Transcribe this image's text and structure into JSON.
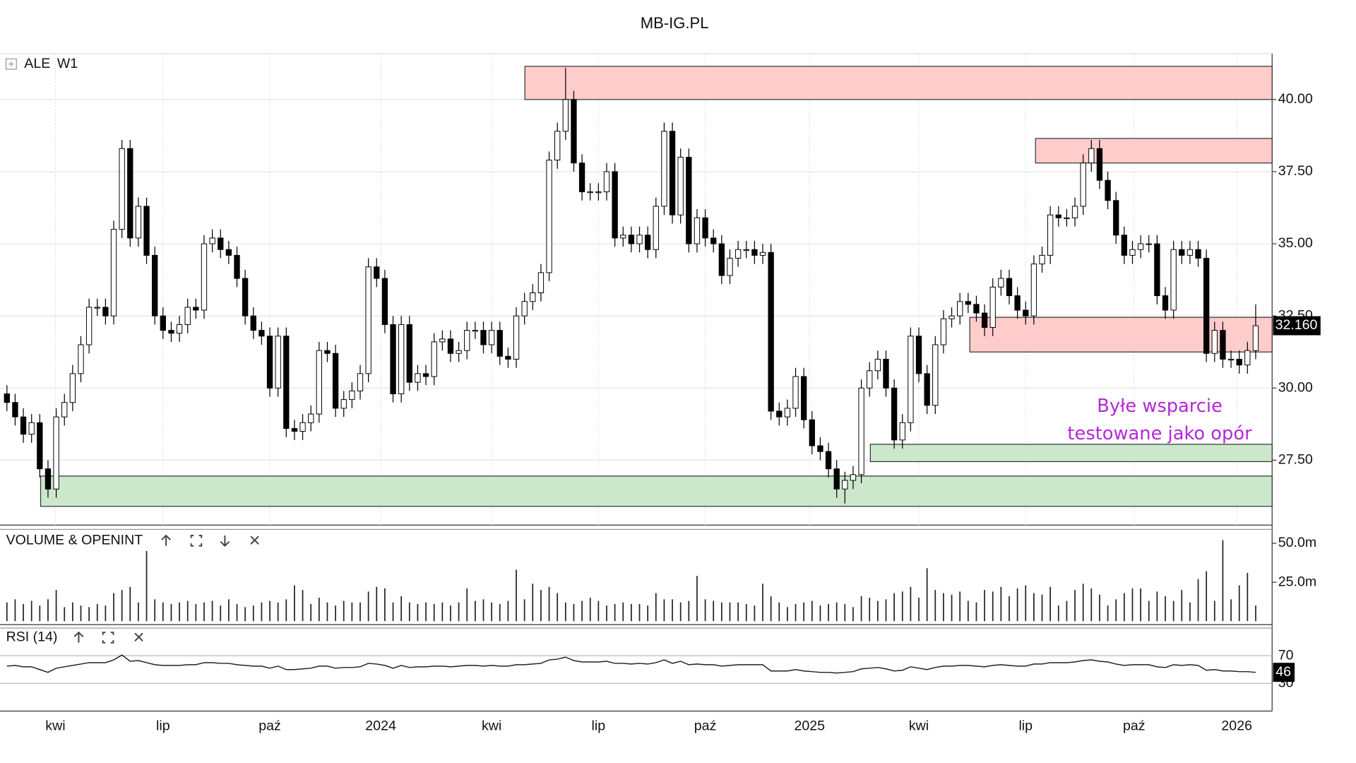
{
  "header": {
    "title": "MB-IG.PL"
  },
  "chart_data": {
    "type": "candlestick",
    "symbol": "ALE",
    "interval": "W1",
    "candles": {
      "open": [
        29.8,
        29.5,
        29.0,
        28.4,
        28.8,
        27.2,
        26.5,
        29.0,
        29.5,
        30.5,
        31.5,
        32.8,
        32.8,
        32.5,
        35.5,
        38.3,
        35.2,
        36.3,
        34.6,
        32.5,
        32.0,
        31.9,
        32.2,
        32.8,
        32.7,
        35.0,
        35.2,
        34.8,
        34.6,
        33.8,
        32.5,
        32.0,
        31.8,
        30.0,
        31.8,
        28.6,
        28.5,
        28.8,
        29.1,
        31.3,
        31.2,
        29.3,
        29.6,
        29.9,
        30.5,
        34.2,
        33.8,
        32.2,
        29.8,
        32.2,
        30.2,
        30.5,
        30.4,
        31.6,
        31.7,
        31.2,
        31.3,
        32.0,
        32.0,
        31.5,
        32.0,
        31.1,
        31.0,
        32.5,
        33.0,
        33.3,
        34.0,
        37.9,
        38.9,
        40.0,
        37.8,
        36.8,
        36.8,
        36.8,
        37.5,
        35.2,
        35.3,
        35.0,
        35.3,
        34.8,
        36.3,
        38.9,
        36.0,
        38.0,
        35.0,
        35.9,
        35.2,
        35.0,
        33.9,
        34.5,
        34.8,
        34.8,
        34.6,
        34.7,
        29.2,
        29.0,
        29.3,
        30.4,
        28.9,
        28.0,
        27.8,
        27.2,
        26.5,
        26.8,
        27.0,
        30.0,
        30.6,
        31.0,
        30.0,
        28.2,
        28.8,
        31.8,
        30.5,
        29.4,
        31.5,
        32.4,
        32.5,
        33.0,
        32.9,
        32.6,
        32.1,
        33.5,
        33.8,
        33.2,
        32.7,
        32.5,
        34.3,
        34.6,
        36.0,
        35.9,
        35.9,
        36.3,
        37.8,
        38.3,
        37.2,
        36.5,
        35.3,
        34.6,
        34.8,
        35.0,
        35.0,
        33.2,
        32.7,
        34.8,
        34.6,
        34.8,
        34.5,
        31.2,
        32.0,
        31.0,
        31.0,
        30.8,
        31.3
      ],
      "high": [
        30.1,
        29.8,
        29.3,
        29.1,
        29.1,
        27.5,
        29.3,
        29.8,
        30.8,
        31.8,
        33.1,
        33.1,
        33.1,
        35.8,
        38.6,
        38.6,
        36.6,
        36.6,
        34.9,
        32.8,
        32.3,
        32.5,
        33.1,
        33.1,
        35.3,
        35.5,
        35.5,
        35.1,
        34.9,
        34.1,
        32.8,
        32.3,
        32.1,
        32.1,
        32.1,
        28.9,
        29.1,
        29.4,
        31.6,
        31.6,
        31.5,
        29.9,
        30.2,
        30.8,
        34.5,
        34.5,
        34.1,
        32.5,
        32.5,
        32.5,
        30.8,
        30.8,
        31.9,
        32.0,
        32.0,
        31.6,
        32.3,
        32.3,
        32.3,
        32.3,
        32.3,
        31.4,
        32.8,
        33.3,
        33.6,
        34.3,
        38.2,
        39.2,
        41.1,
        40.3,
        38.1,
        37.1,
        37.1,
        37.8,
        37.8,
        35.6,
        35.6,
        35.6,
        35.6,
        36.6,
        39.2,
        39.2,
        38.3,
        38.3,
        36.2,
        36.2,
        35.5,
        35.3,
        34.8,
        35.1,
        35.1,
        35.1,
        35.0,
        35.0,
        29.5,
        29.6,
        30.7,
        30.7,
        29.2,
        28.3,
        28.1,
        27.5,
        27.1,
        27.3,
        30.3,
        30.9,
        31.3,
        31.3,
        30.3,
        29.1,
        32.1,
        32.1,
        30.8,
        31.8,
        32.7,
        32.8,
        33.3,
        33.3,
        33.2,
        32.9,
        33.8,
        34.1,
        34.1,
        33.5,
        33.0,
        34.6,
        34.9,
        36.3,
        36.3,
        36.2,
        36.6,
        38.1,
        38.6,
        38.6,
        37.5,
        36.8,
        35.6,
        35.1,
        35.3,
        35.3,
        35.3,
        33.5,
        35.1,
        35.1,
        35.1,
        35.1,
        34.8,
        32.3,
        32.3,
        31.3,
        31.3,
        31.6,
        32.9
      ],
      "low": [
        29.2,
        28.7,
        28.1,
        28.1,
        26.9,
        26.2,
        26.2,
        28.7,
        29.2,
        30.2,
        31.2,
        32.5,
        32.2,
        32.2,
        35.2,
        34.9,
        34.9,
        34.3,
        32.2,
        31.7,
        31.6,
        31.6,
        31.9,
        32.4,
        32.4,
        34.7,
        34.5,
        34.3,
        33.5,
        32.2,
        31.7,
        31.5,
        29.7,
        29.7,
        28.3,
        28.2,
        28.2,
        28.5,
        28.8,
        30.9,
        29.0,
        29.0,
        29.3,
        29.6,
        30.2,
        33.5,
        31.9,
        29.5,
        29.5,
        29.9,
        29.9,
        30.1,
        30.1,
        31.3,
        30.9,
        30.9,
        31.0,
        31.7,
        31.2,
        31.2,
        30.8,
        30.7,
        30.7,
        32.2,
        32.7,
        33.0,
        33.7,
        37.6,
        38.6,
        37.5,
        36.5,
        36.5,
        36.5,
        36.5,
        34.9,
        34.9,
        34.7,
        34.7,
        34.5,
        34.5,
        36.0,
        35.7,
        35.7,
        34.7,
        34.7,
        34.9,
        34.7,
        33.6,
        33.6,
        34.2,
        34.5,
        34.3,
        34.3,
        28.9,
        28.7,
        28.7,
        29.0,
        28.6,
        27.7,
        27.5,
        26.9,
        26.2,
        26.0,
        26.5,
        26.7,
        29.7,
        30.3,
        29.7,
        27.9,
        27.9,
        28.5,
        30.2,
        29.1,
        29.1,
        31.2,
        32.1,
        32.2,
        32.6,
        32.3,
        31.8,
        31.8,
        33.2,
        32.9,
        32.4,
        32.2,
        32.2,
        34.0,
        34.3,
        35.6,
        35.6,
        35.6,
        36.0,
        37.5,
        36.9,
        36.2,
        35.0,
        34.3,
        34.3,
        34.5,
        34.7,
        32.9,
        32.4,
        32.4,
        34.3,
        34.3,
        34.2,
        30.9,
        30.9,
        30.7,
        30.7,
        30.5,
        30.5,
        31.0
      ],
      "close": [
        29.5,
        29.0,
        28.4,
        28.8,
        27.2,
        26.5,
        29.0,
        29.5,
        30.5,
        31.5,
        32.8,
        32.8,
        32.5,
        35.5,
        38.3,
        35.2,
        36.3,
        34.6,
        32.5,
        32.0,
        31.9,
        32.2,
        32.8,
        32.7,
        35.0,
        35.2,
        34.8,
        34.6,
        33.8,
        32.5,
        32.0,
        31.8,
        30.0,
        31.8,
        28.6,
        28.5,
        28.8,
        29.1,
        31.3,
        31.2,
        29.3,
        29.6,
        29.9,
        30.5,
        34.2,
        33.8,
        32.2,
        29.8,
        32.2,
        30.2,
        30.5,
        30.4,
        31.6,
        31.7,
        31.2,
        31.3,
        32.0,
        32.0,
        31.5,
        32.0,
        31.1,
        31.0,
        32.5,
        33.0,
        33.3,
        34.0,
        37.9,
        38.9,
        40.0,
        37.8,
        36.8,
        36.8,
        36.8,
        37.5,
        35.2,
        35.3,
        35.0,
        35.3,
        34.8,
        36.3,
        38.9,
        36.0,
        38.0,
        35.0,
        35.9,
        35.2,
        35.0,
        33.9,
        34.5,
        34.8,
        34.8,
        34.6,
        34.7,
        29.2,
        29.0,
        29.3,
        30.4,
        28.9,
        28.0,
        27.8,
        27.2,
        26.5,
        26.8,
        27.0,
        30.0,
        30.6,
        31.0,
        30.0,
        28.2,
        28.8,
        31.8,
        30.5,
        29.4,
        31.5,
        32.4,
        32.5,
        33.0,
        32.9,
        32.6,
        32.1,
        33.5,
        33.8,
        33.2,
        32.7,
        32.5,
        34.3,
        34.6,
        36.0,
        35.9,
        35.9,
        36.3,
        37.8,
        38.3,
        37.2,
        36.5,
        35.3,
        34.6,
        34.8,
        35.0,
        35.0,
        33.2,
        32.7,
        34.8,
        34.6,
        34.8,
        34.5,
        31.2,
        32.0,
        31.0,
        31.0,
        30.8,
        31.3,
        32.16
      ],
      "last_close_label": "32.160"
    },
    "ylim": [
      25.25,
      41.59
    ],
    "yticks": [
      {
        "value": 27.5,
        "label": "27.50"
      },
      {
        "value": 30,
        "label": "30.00"
      },
      {
        "value": 32.5,
        "label": "32.50"
      },
      {
        "value": 35,
        "label": "35.00"
      },
      {
        "value": 37.5,
        "label": "37.50"
      },
      {
        "value": 40,
        "label": "40.00"
      }
    ],
    "xticks": [
      {
        "value": 5.9,
        "label": "kwi"
      },
      {
        "value": 19,
        "label": "lip"
      },
      {
        "value": 32,
        "label": "paź"
      },
      {
        "value": 45.5,
        "label": "2024"
      },
      {
        "value": 59,
        "label": "kwi"
      },
      {
        "value": 72,
        "label": "lip"
      },
      {
        "value": 85,
        "label": "paź"
      },
      {
        "value": 97.7,
        "label": "2025"
      },
      {
        "value": 111,
        "label": "kwi"
      },
      {
        "value": 124,
        "label": "lip"
      },
      {
        "value": 137.2,
        "label": "paź"
      },
      {
        "value": 149.7,
        "label": "2026"
      }
    ],
    "grid": true,
    "zones": [
      {
        "start": 63.05,
        "low": 40.0,
        "high": 41.15,
        "color": "#ffcccc"
      },
      {
        "start": 125.2,
        "low": 37.8,
        "high": 38.65,
        "color": "#ffcccc"
      },
      {
        "start": 117.2,
        "low": 31.25,
        "high": 32.45,
        "color": "#ffcccc"
      },
      {
        "start": 4.1,
        "low": 25.9,
        "high": 26.95,
        "color": "#cce8cc"
      },
      {
        "start": 105.1,
        "low": 27.45,
        "high": 28.05,
        "color": "#cce8cc"
      }
    ],
    "annotation": [
      "Byłe wsparcie",
      "testowane jako opór"
    ],
    "volume": {
      "name": "VOLUME & OPENINT",
      "values": [
        12,
        14,
        11,
        13,
        10,
        14,
        20,
        9,
        12,
        10,
        9,
        11,
        10,
        18,
        20,
        22,
        12,
        45,
        14,
        12,
        11,
        12,
        13,
        11,
        12,
        13,
        10,
        14,
        11,
        9,
        10,
        12,
        13,
        12,
        14,
        23,
        20,
        11,
        15,
        12,
        10,
        13,
        12,
        12,
        19,
        22,
        21,
        12,
        16,
        12,
        11,
        12,
        11,
        12,
        10,
        12,
        21,
        13,
        14,
        12,
        11,
        13,
        33,
        14,
        24,
        20,
        22,
        18,
        12,
        11,
        13,
        15,
        13,
        10,
        11,
        12,
        11,
        11,
        10,
        18,
        14,
        14,
        12,
        13,
        29,
        14,
        13,
        12,
        12,
        12,
        11,
        10,
        24,
        16,
        12,
        9,
        11,
        12,
        13,
        10,
        11,
        12,
        11,
        9,
        16,
        15,
        13,
        14,
        18,
        19,
        22,
        15,
        34,
        20,
        18,
        17,
        19,
        13,
        12,
        20,
        19,
        22,
        16,
        21,
        23,
        18,
        17,
        22,
        10,
        13,
        20,
        24,
        21,
        17,
        10,
        14,
        18,
        21,
        21,
        13,
        19,
        16,
        13,
        20,
        12,
        27,
        32,
        13,
        52,
        14,
        23,
        31,
        10
      ],
      "ylim": [
        0,
        53
      ],
      "yticks": [
        {
          "value": 25,
          "label": "25.0m"
        },
        {
          "value": 50,
          "label": "50.0m"
        }
      ]
    },
    "rsi": {
      "name": "RSI (14)",
      "values": [
        55,
        56,
        54,
        54,
        50,
        46,
        52,
        54,
        56,
        58,
        60,
        60,
        60,
        64,
        71,
        62,
        63,
        60,
        57,
        56,
        56,
        56,
        57,
        57,
        60,
        60,
        59,
        59,
        57,
        56,
        55,
        55,
        52,
        55,
        50,
        50,
        51,
        52,
        55,
        55,
        52,
        53,
        53,
        54,
        59,
        58,
        56,
        52,
        56,
        53,
        54,
        54,
        55,
        55,
        54,
        55,
        56,
        56,
        55,
        56,
        55,
        55,
        57,
        57,
        58,
        59,
        64,
        65,
        68,
        63,
        61,
        61,
        61,
        62,
        59,
        59,
        58,
        59,
        58,
        60,
        64,
        59,
        62,
        57,
        58,
        57,
        57,
        55,
        56,
        57,
        57,
        57,
        57,
        48,
        48,
        48,
        50,
        48,
        47,
        46,
        46,
        45,
        46,
        47,
        51,
        52,
        53,
        51,
        48,
        49,
        54,
        52,
        50,
        53,
        55,
        55,
        56,
        56,
        55,
        54,
        56,
        57,
        56,
        55,
        55,
        58,
        58,
        60,
        60,
        60,
        61,
        63,
        64,
        62,
        61,
        58,
        56,
        57,
        57,
        57,
        54,
        53,
        57,
        56,
        57,
        56,
        49,
        50,
        48,
        48,
        47,
        47,
        46
      ],
      "ylim": [
        0,
        100
      ],
      "yticks": [
        30,
        70
      ]
    }
  }
}
